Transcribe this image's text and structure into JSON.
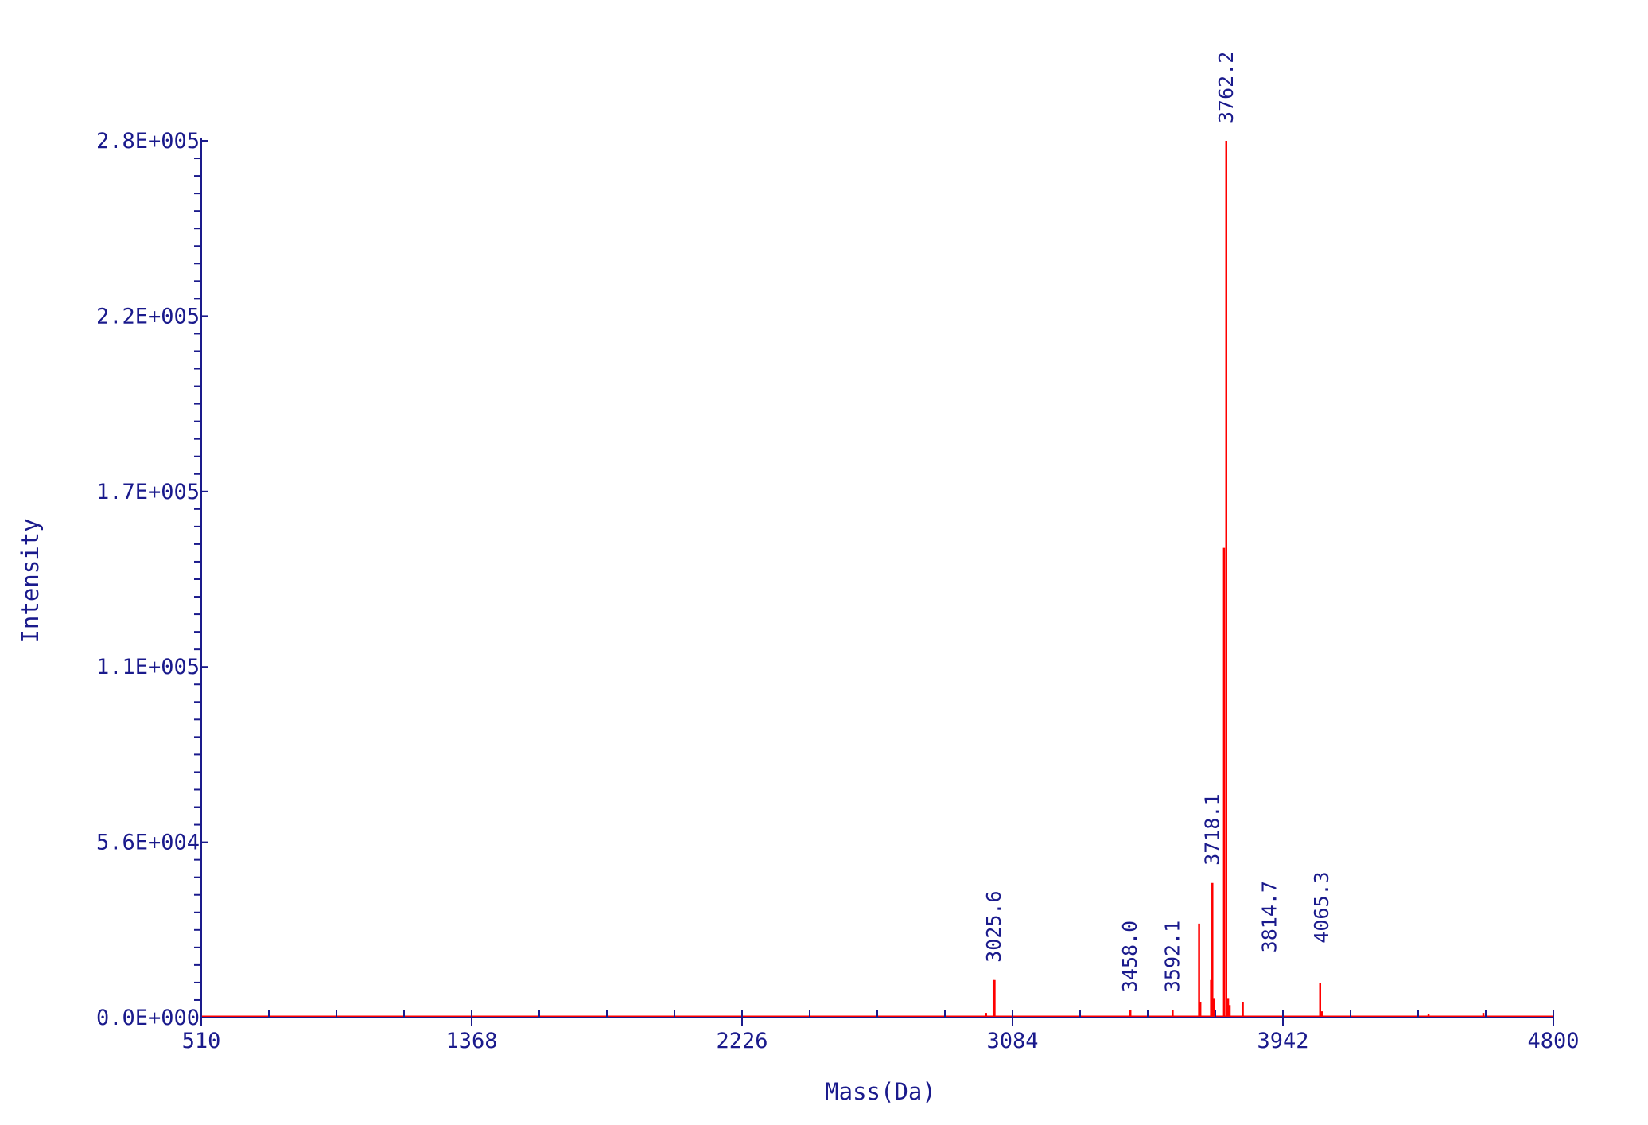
{
  "chart_data": {
    "type": "line",
    "title": "",
    "xlabel": "Mass(Da)",
    "ylabel": "Intensity",
    "xlim": [
      510,
      4800
    ],
    "ylim": [
      0,
      280000
    ],
    "x_tick_labels": [
      "510",
      "1368",
      "2226",
      "3084",
      "3942",
      "4800"
    ],
    "x_ticks": [
      510,
      1368,
      2226,
      3084,
      3942,
      4800
    ],
    "y_tick_labels": [
      "0.0E+000",
      "5.6E+004",
      "1.1E+005",
      "1.7E+005",
      "2.2E+005",
      "2.8E+005"
    ],
    "y_ticks": [
      0,
      56000,
      112000,
      168000,
      224000,
      280000
    ],
    "grid": false,
    "colors": {
      "axis": "#1a1a8c",
      "spectrum": "#ff0000"
    },
    "peak_labels": [
      {
        "mass": 3025.6,
        "text": "3025.6"
      },
      {
        "mass": 3458.0,
        "text": "3458.0"
      },
      {
        "mass": 3592.1,
        "text": "3592.1"
      },
      {
        "mass": 3718.1,
        "text": "3718.1"
      },
      {
        "mass": 3762.2,
        "text": "3762.2"
      },
      {
        "mass": 3814.7,
        "text": "3814.7"
      },
      {
        "mass": 4065.3,
        "text": "4065.3"
      }
    ],
    "series": [
      {
        "peaks": [
          {
            "x": 3000,
            "y": 1500
          },
          {
            "x": 3024,
            "y": 12000
          },
          {
            "x": 3027,
            "y": 12000
          },
          {
            "x": 3458.0,
            "y": 2500
          },
          {
            "x": 3592.1,
            "y": 2500
          },
          {
            "x": 3676,
            "y": 30000
          },
          {
            "x": 3680,
            "y": 5000
          },
          {
            "x": 3714,
            "y": 12000
          },
          {
            "x": 3718.1,
            "y": 43000
          },
          {
            "x": 3722,
            "y": 6000
          },
          {
            "x": 3755,
            "y": 150000
          },
          {
            "x": 3762.2,
            "y": 280000
          },
          {
            "x": 3768,
            "y": 6000
          },
          {
            "x": 3773,
            "y": 4000
          },
          {
            "x": 3814.7,
            "y": 5000
          },
          {
            "x": 4060,
            "y": 11000
          },
          {
            "x": 4065.3,
            "y": 2000
          },
          {
            "x": 4404,
            "y": 1200
          },
          {
            "x": 4578,
            "y": 1500
          }
        ]
      }
    ]
  }
}
